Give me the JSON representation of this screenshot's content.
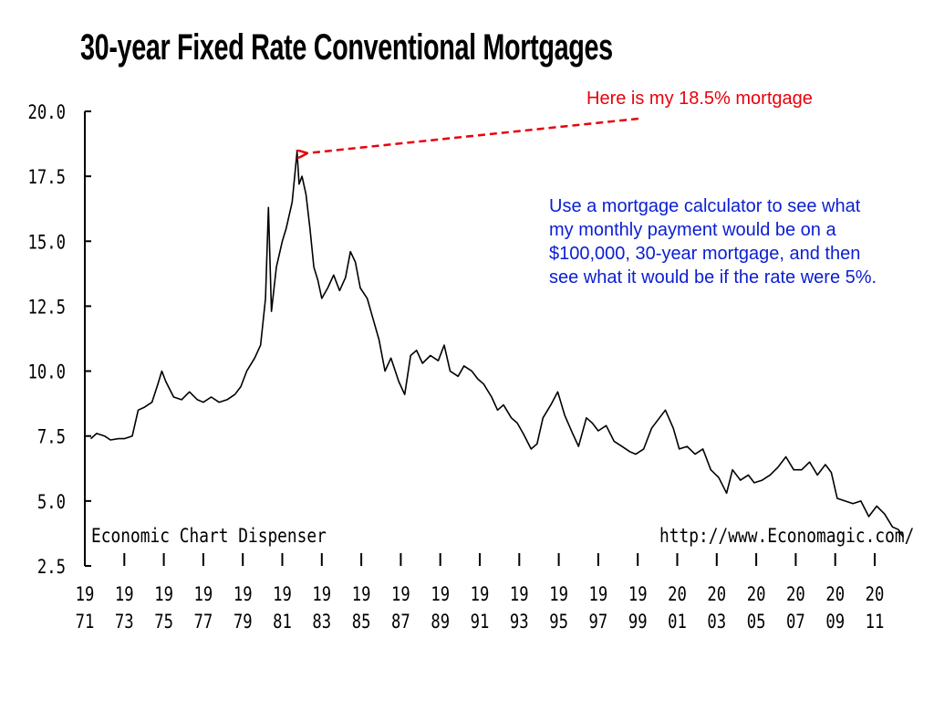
{
  "title": "30-year Fixed Rate Conventional Mortgages",
  "annotation_red": "Here is my 18.5% mortgage",
  "annotation_blue": "Use a mortgage calculator to see what my monthly payment would be on a $100,000, 30-year mortgage, and then see what it would be if the rate were 5%.",
  "watermark_left": "Economic Chart Dispenser",
  "watermark_right": "http://www.Economagic.com/",
  "colors": {
    "line": "#000000",
    "annotation_red": "#e8000b",
    "annotation_blue": "#0a1ed2"
  },
  "chart_data": {
    "type": "line",
    "title": "30-year Fixed Rate Conventional Mortgages",
    "xlabel": "",
    "ylabel": "",
    "xlim": [
      1971,
      2013
    ],
    "ylim": [
      2.5,
      20.0
    ],
    "y_ticks": [
      "20.0",
      "17.5",
      "15.0",
      "12.5",
      "10.0",
      "7.5",
      "5.0",
      "2.5"
    ],
    "x_tick_labels": [
      [
        "19",
        "71"
      ],
      [
        "19",
        "73"
      ],
      [
        "19",
        "75"
      ],
      [
        "19",
        "77"
      ],
      [
        "19",
        "79"
      ],
      [
        "19",
        "81"
      ],
      [
        "19",
        "83"
      ],
      [
        "19",
        "85"
      ],
      [
        "19",
        "87"
      ],
      [
        "19",
        "89"
      ],
      [
        "19",
        "91"
      ],
      [
        "19",
        "93"
      ],
      [
        "19",
        "95"
      ],
      [
        "19",
        "97"
      ],
      [
        "19",
        "99"
      ],
      [
        "20",
        "01"
      ],
      [
        "20",
        "03"
      ],
      [
        "20",
        "05"
      ],
      [
        "20",
        "07"
      ],
      [
        "20",
        "09"
      ],
      [
        "20",
        "11"
      ]
    ],
    "grid": false,
    "series": [
      {
        "values": [
          [
            1971.3,
            7.4
          ],
          [
            1971.6,
            7.6
          ],
          [
            1972.0,
            7.5
          ],
          [
            1972.3,
            7.35
          ],
          [
            1972.7,
            7.4
          ],
          [
            1973.0,
            7.4
          ],
          [
            1973.4,
            7.5
          ],
          [
            1973.7,
            8.5
          ],
          [
            1974.0,
            8.6
          ],
          [
            1974.4,
            8.8
          ],
          [
            1974.7,
            9.5
          ],
          [
            1974.9,
            10.0
          ],
          [
            1975.1,
            9.6
          ],
          [
            1975.5,
            9.0
          ],
          [
            1975.9,
            8.9
          ],
          [
            1976.3,
            9.2
          ],
          [
            1976.7,
            8.9
          ],
          [
            1977.0,
            8.8
          ],
          [
            1977.4,
            9.0
          ],
          [
            1977.8,
            8.8
          ],
          [
            1978.2,
            8.9
          ],
          [
            1978.6,
            9.1
          ],
          [
            1978.9,
            9.4
          ],
          [
            1979.2,
            10.0
          ],
          [
            1979.6,
            10.5
          ],
          [
            1979.9,
            11.0
          ],
          [
            1980.15,
            12.8
          ],
          [
            1980.3,
            16.3
          ],
          [
            1980.45,
            12.3
          ],
          [
            1980.7,
            14.0
          ],
          [
            1981.0,
            15.0
          ],
          [
            1981.2,
            15.5
          ],
          [
            1981.5,
            16.5
          ],
          [
            1981.75,
            18.45
          ],
          [
            1981.85,
            17.2
          ],
          [
            1982.0,
            17.5
          ],
          [
            1982.2,
            16.8
          ],
          [
            1982.4,
            15.5
          ],
          [
            1982.6,
            14.0
          ],
          [
            1982.8,
            13.5
          ],
          [
            1983.0,
            12.8
          ],
          [
            1983.3,
            13.2
          ],
          [
            1983.6,
            13.7
          ],
          [
            1983.9,
            13.1
          ],
          [
            1984.2,
            13.6
          ],
          [
            1984.45,
            14.6
          ],
          [
            1984.7,
            14.2
          ],
          [
            1984.95,
            13.2
          ],
          [
            1985.3,
            12.8
          ],
          [
            1985.6,
            12.0
          ],
          [
            1985.9,
            11.2
          ],
          [
            1986.2,
            10.0
          ],
          [
            1986.5,
            10.5
          ],
          [
            1986.9,
            9.6
          ],
          [
            1987.2,
            9.1
          ],
          [
            1987.5,
            10.6
          ],
          [
            1987.8,
            10.8
          ],
          [
            1988.1,
            10.3
          ],
          [
            1988.5,
            10.6
          ],
          [
            1988.9,
            10.4
          ],
          [
            1989.2,
            11.0
          ],
          [
            1989.5,
            10.0
          ],
          [
            1989.9,
            9.8
          ],
          [
            1990.2,
            10.2
          ],
          [
            1990.6,
            10.0
          ],
          [
            1990.9,
            9.7
          ],
          [
            1991.2,
            9.5
          ],
          [
            1991.6,
            9.0
          ],
          [
            1991.9,
            8.5
          ],
          [
            1992.2,
            8.7
          ],
          [
            1992.6,
            8.2
          ],
          [
            1992.9,
            8.0
          ],
          [
            1993.2,
            7.6
          ],
          [
            1993.6,
            7.0
          ],
          [
            1993.9,
            7.2
          ],
          [
            1994.2,
            8.2
          ],
          [
            1994.6,
            8.7
          ],
          [
            1994.95,
            9.2
          ],
          [
            1995.3,
            8.3
          ],
          [
            1995.7,
            7.6
          ],
          [
            1996.0,
            7.1
          ],
          [
            1996.4,
            8.2
          ],
          [
            1996.7,
            8.0
          ],
          [
            1997.0,
            7.7
          ],
          [
            1997.4,
            7.9
          ],
          [
            1997.8,
            7.3
          ],
          [
            1998.2,
            7.1
          ],
          [
            1998.6,
            6.9
          ],
          [
            1998.9,
            6.8
          ],
          [
            1999.3,
            7.0
          ],
          [
            1999.7,
            7.8
          ],
          [
            2000.1,
            8.2
          ],
          [
            2000.4,
            8.5
          ],
          [
            2000.8,
            7.8
          ],
          [
            2001.1,
            7.0
          ],
          [
            2001.5,
            7.1
          ],
          [
            2001.9,
            6.8
          ],
          [
            2002.3,
            7.0
          ],
          [
            2002.7,
            6.2
          ],
          [
            2003.1,
            5.9
          ],
          [
            2003.5,
            5.3
          ],
          [
            2003.8,
            6.2
          ],
          [
            2004.2,
            5.8
          ],
          [
            2004.6,
            6.0
          ],
          [
            2004.9,
            5.7
          ],
          [
            2005.3,
            5.8
          ],
          [
            2005.7,
            6.0
          ],
          [
            2006.1,
            6.3
          ],
          [
            2006.5,
            6.7
          ],
          [
            2006.9,
            6.2
          ],
          [
            2007.3,
            6.2
          ],
          [
            2007.7,
            6.5
          ],
          [
            2008.1,
            6.0
          ],
          [
            2008.5,
            6.4
          ],
          [
            2008.8,
            6.1
          ],
          [
            2009.1,
            5.1
          ],
          [
            2009.5,
            5.0
          ],
          [
            2009.9,
            4.9
          ],
          [
            2010.3,
            5.0
          ],
          [
            2010.7,
            4.4
          ],
          [
            2011.1,
            4.8
          ],
          [
            2011.5,
            4.5
          ],
          [
            2011.9,
            4.0
          ],
          [
            2012.2,
            3.9
          ],
          [
            2012.45,
            3.6
          ]
        ]
      }
    ]
  }
}
